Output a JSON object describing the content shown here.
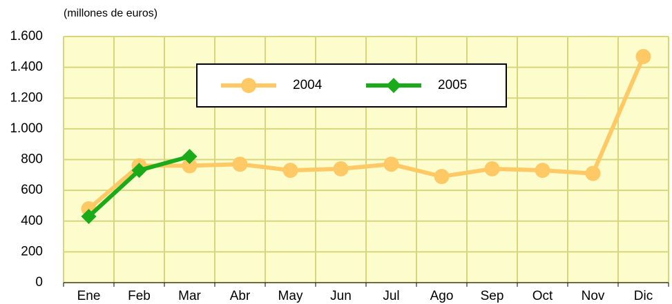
{
  "chart_data": {
    "type": "line",
    "subtitle": "(millones de euros)",
    "categories": [
      "Ene",
      "Feb",
      "Mar",
      "Abr",
      "May",
      "Jun",
      "Jul",
      "Ago",
      "Sep",
      "Oct",
      "Nov",
      "Dic"
    ],
    "series": [
      {
        "name": "2004",
        "color": "#ffc966",
        "marker": "circle",
        "values": [
          480,
          760,
          760,
          770,
          730,
          740,
          770,
          690,
          740,
          730,
          710,
          1470
        ]
      },
      {
        "name": "2005",
        "color": "#1aaa1a",
        "marker": "diamond",
        "values": [
          430,
          730,
          820,
          null,
          null,
          null,
          null,
          null,
          null,
          null,
          null,
          null
        ]
      }
    ],
    "ylim": [
      0,
      1600
    ],
    "yticks": [
      0,
      200,
      400,
      600,
      800,
      {
        "value": 1000,
        "label": "1.000"
      },
      {
        "value": 1200,
        "label": "1.200"
      },
      {
        "value": 1400,
        "label": "1.400"
      },
      {
        "value": 1600,
        "label": "1.600"
      }
    ],
    "grid": true
  }
}
